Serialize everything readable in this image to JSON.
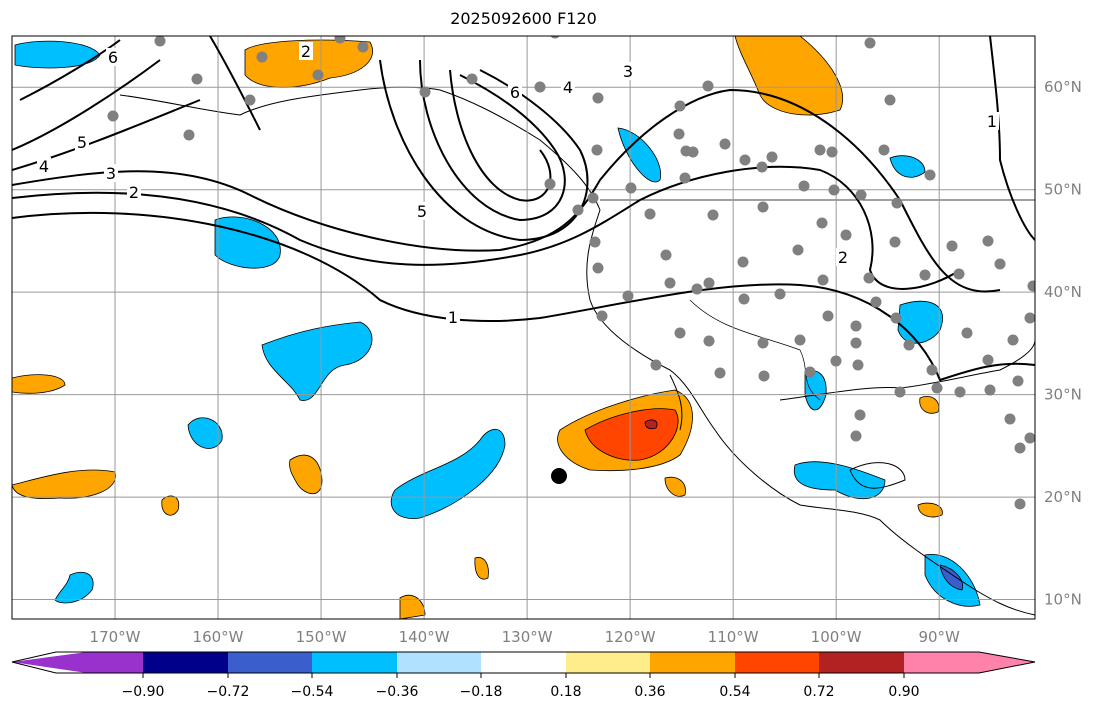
{
  "title": "2025092600 F120",
  "map": {
    "lon_ticks": [
      "170°W",
      "160°W",
      "150°W",
      "140°W",
      "130°W",
      "120°W",
      "110°W",
      "100°W",
      "90°W"
    ],
    "lat_ticks": [
      "60°N",
      "50°N",
      "40°N",
      "30°N",
      "20°N",
      "10°N"
    ],
    "extent": {
      "lon": [
        -180,
        -80.7
      ],
      "lat": [
        8.1,
        65
      ]
    },
    "contour_labels": [
      "6",
      "5",
      "4",
      "3",
      "2",
      "1",
      "2",
      "5",
      "6",
      "4",
      "3",
      "1",
      "2"
    ]
  },
  "colorbar": {
    "levels": [
      "−0.90",
      "−0.72",
      "−0.54",
      "−0.36",
      "−0.18",
      "0.18",
      "0.36",
      "0.54",
      "0.72",
      "0.90"
    ],
    "colors": [
      "#9932cc",
      "#00008b",
      "#3a5fcd",
      "#00bfff",
      "#b0e2ff",
      "#ffffff",
      "#ffec8b",
      "#ffa500",
      "#ff4500",
      "#b22222",
      "#ff82ab"
    ]
  }
}
